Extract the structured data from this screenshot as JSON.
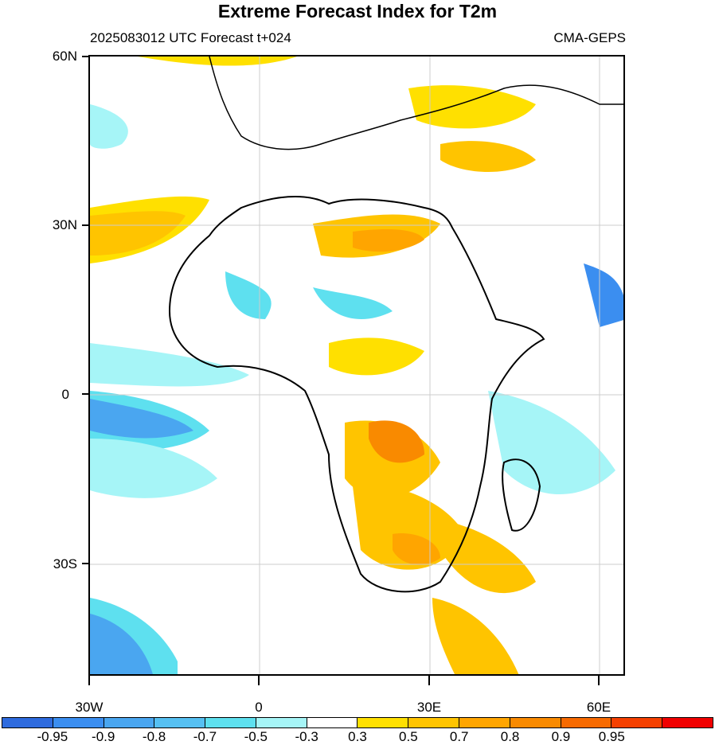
{
  "title": "Extreme Forecast Index for T2m",
  "subtitle_left": "2025083012 UTC Forecast t+024",
  "subtitle_right": "CMA-GEPS",
  "map": {
    "lat_labels": [
      "60N",
      "30N",
      "0",
      "30S"
    ],
    "lon_labels": [
      "30W",
      "0",
      "30E",
      "60E"
    ],
    "gridlines": true
  },
  "colorbar": {
    "colors": [
      "#2e6bde",
      "#3b8ef0",
      "#4aa6f0",
      "#56c0f2",
      "#5ee0ef",
      "#a6f5f7",
      "#ffffff",
      "#ffe000",
      "#ffc400",
      "#ffa500",
      "#f98a00",
      "#f76a00",
      "#f54000",
      "#f00000"
    ],
    "labels": [
      "-0.95",
      "-0.9",
      "-0.8",
      "-0.7",
      "-0.5",
      "-0.3",
      "0.3",
      "0.5",
      "0.7",
      "0.8",
      "0.9",
      "0.95"
    ]
  }
}
